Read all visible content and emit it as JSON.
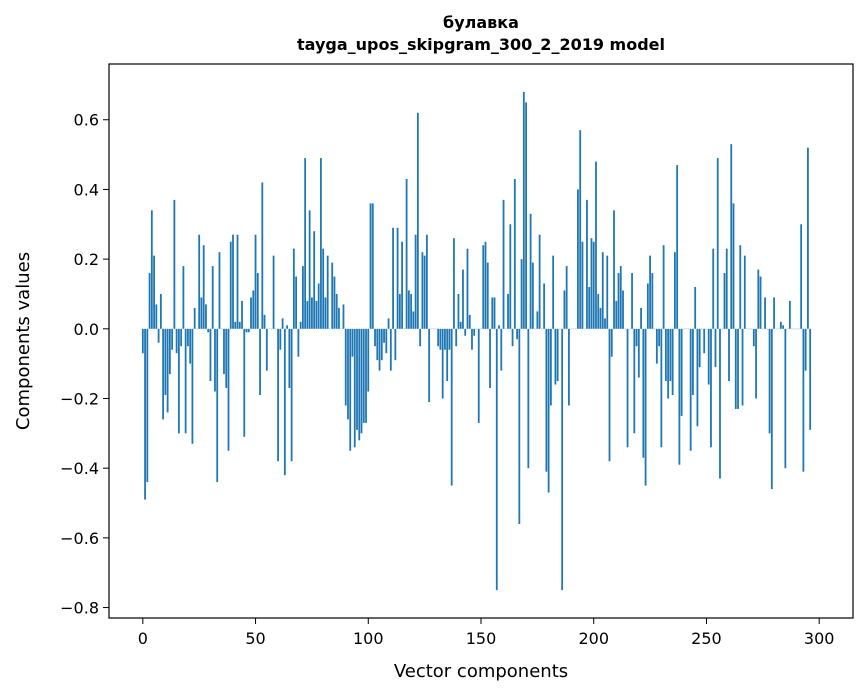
{
  "chart_data": {
    "type": "bar",
    "title": "булавка",
    "subtitle": "tayga_upos_skipgram_300_2_2019 model",
    "xlabel": "Vector components",
    "ylabel": "Components values",
    "xlim": [
      -15,
      315
    ],
    "ylim": [
      -0.83,
      0.76
    ],
    "xticks": [
      0,
      50,
      100,
      150,
      200,
      250,
      300
    ],
    "yticks": [
      -0.8,
      -0.6,
      -0.4,
      -0.2,
      0.0,
      0.2,
      0.4,
      0.6
    ],
    "ytick_labels": [
      "−0.8",
      "−0.6",
      "−0.4",
      "−0.2",
      "0.0",
      "0.2",
      "0.4",
      "0.6"
    ],
    "grid": false,
    "bar_color": "#1f77b4",
    "values": [
      -0.07,
      -0.49,
      -0.44,
      0.16,
      0.34,
      0.21,
      0.07,
      -0.04,
      0.1,
      -0.26,
      -0.19,
      -0.24,
      -0.13,
      -0.06,
      0.37,
      -0.07,
      -0.3,
      -0.05,
      0.18,
      -0.3,
      -0.05,
      -0.1,
      -0.33,
      0.06,
      0.0,
      0.27,
      0.09,
      0.24,
      0.07,
      -0.01,
      -0.15,
      0.18,
      -0.18,
      -0.44,
      0.22,
      0.0,
      -0.13,
      -0.17,
      -0.35,
      0.25,
      0.27,
      0.02,
      0.27,
      0.02,
      0.08,
      -0.31,
      -0.01,
      -0.01,
      0.09,
      0.11,
      0.27,
      0.16,
      -0.19,
      0.42,
      0.04,
      -0.12,
      0.0,
      0.0,
      0.21,
      0.0,
      -0.38,
      -0.06,
      0.03,
      -0.42,
      0.01,
      -0.17,
      -0.38,
      0.23,
      0.15,
      -0.08,
      0.02,
      0.18,
      0.49,
      0.08,
      0.34,
      0.09,
      0.28,
      0.08,
      0.13,
      0.49,
      0.23,
      0.09,
      0.21,
      0.0,
      0.19,
      0.15,
      0.1,
      0.06,
      0.0,
      0.07,
      -0.22,
      -0.26,
      -0.35,
      -0.08,
      -0.34,
      -0.29,
      -0.32,
      -0.3,
      -0.27,
      -0.27,
      -0.18,
      0.36,
      0.36,
      -0.05,
      -0.09,
      -0.12,
      -0.09,
      -0.04,
      -0.07,
      0.03,
      -0.12,
      0.29,
      -0.09,
      0.29,
      0.1,
      0.25,
      0.0,
      0.43,
      0.11,
      0.1,
      0.05,
      0.27,
      0.62,
      -0.05,
      0.22,
      0.21,
      0.27,
      -0.21,
      0.0,
      0.0,
      0.0,
      -0.05,
      -0.06,
      -0.2,
      -0.06,
      -0.15,
      -0.06,
      -0.45,
      0.26,
      -0.05,
      0.1,
      0.02,
      0.17,
      -0.02,
      0.23,
      0.04,
      -0.06,
      -0.02,
      0.0,
      -0.27,
      0.0,
      0.24,
      0.25,
      0.19,
      -0.17,
      0.09,
      0.09,
      -0.75,
      0.01,
      -0.12,
      0.37,
      0.0,
      0.1,
      0.3,
      -0.05,
      0.43,
      -0.03,
      -0.56,
      0.2,
      0.68,
      0.65,
      -0.4,
      0.33,
      0.19,
      0.0,
      0.05,
      0.27,
      0.0,
      0.13,
      -0.41,
      -0.47,
      -0.22,
      0.21,
      -0.16,
      -0.15,
      0.0,
      -0.75,
      0.11,
      0.18,
      -0.22,
      0.0,
      0.0,
      0.0,
      0.4,
      0.57,
      0.25,
      0.0,
      0.37,
      0.12,
      0.26,
      0.25,
      0.48,
      0.1,
      0.06,
      0.22,
      0.03,
      0.21,
      -0.38,
      -0.08,
      0.34,
      0.08,
      0.16,
      0.18,
      0.11,
      0.0,
      -0.34,
      0.0,
      0.16,
      -0.3,
      -0.05,
      -0.14,
      0.06,
      -0.37,
      -0.45,
      0.13,
      0.21,
      0.16,
      0.0,
      -0.1,
      -0.05,
      -0.34,
      0.24,
      -0.15,
      -0.2,
      -0.15,
      -0.19,
      0.22,
      0.47,
      -0.39,
      -0.25,
      0.0,
      0.0,
      0.0,
      -0.35,
      -0.19,
      0.12,
      -0.28,
      -0.11,
      0.0,
      -0.07,
      0.0,
      -0.16,
      -0.34,
      0.23,
      -0.11,
      0.49,
      -0.43,
      0.0,
      0.16,
      0.23,
      -0.15,
      0.53,
      0.36,
      -0.23,
      -0.23,
      0.24,
      -0.22,
      0.21,
      0.0,
      0.0,
      0.0,
      -0.05,
      -0.2,
      0.17,
      0.15,
      0.0,
      0.09,
      0.0,
      -0.3,
      -0.46,
      0.09,
      0.0,
      0.0,
      0.02,
      0.01,
      -0.4,
      0.0,
      0.08,
      0.0,
      0.0,
      0.0,
      0.0,
      0.3,
      -0.41,
      -0.12,
      0.52,
      -0.29
    ]
  }
}
